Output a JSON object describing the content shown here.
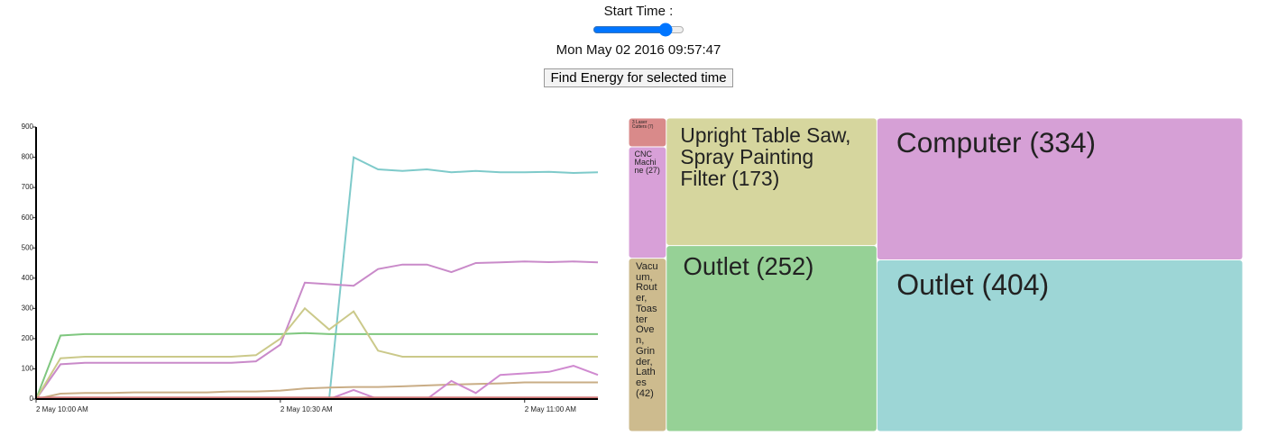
{
  "controls": {
    "label": "Start Time :",
    "date": "Mon May 02 2016 09:57:47",
    "button": "Find Energy for selected time"
  },
  "chart_data": [
    {
      "type": "line",
      "x": [
        "2 May 10:00 AM",
        "2 May 10:03 AM",
        "2 May 10:06 AM",
        "2 May 10:09 AM",
        "2 May 10:12 AM",
        "2 May 10:15 AM",
        "2 May 10:18 AM",
        "2 May 10:21 AM",
        "2 May 10:24 AM",
        "2 May 10:27 AM",
        "2 May 10:30 AM",
        "2 May 10:33 AM",
        "2 May 10:36 AM",
        "2 May 10:39 AM",
        "2 May 10:42 AM",
        "2 May 10:45 AM",
        "2 May 10:48 AM",
        "2 May 10:51 AM",
        "2 May 10:54 AM",
        "2 May 10:57 AM",
        "2 May 11:00 AM",
        "2 May 11:03 AM",
        "2 May 11:06 AM",
        "2 May 11:09 AM"
      ],
      "xlim": [
        "2 May 10:00 AM",
        "2 May 11:09 AM"
      ],
      "xticks": [
        "2 May 10:00 AM",
        "2 May 10:30 AM",
        "2 May 11:00 AM"
      ],
      "ylim": [
        0,
        900
      ],
      "yticks": [
        0,
        100,
        200,
        300,
        400,
        500,
        600,
        700,
        800,
        900
      ],
      "series": [
        {
          "color": "#7ecaca",
          "values": [
            0,
            0,
            0,
            0,
            0,
            0,
            0,
            0,
            0,
            0,
            0,
            0,
            0,
            800,
            760,
            755,
            760,
            750,
            755,
            750,
            750,
            752,
            748,
            750
          ]
        },
        {
          "color": "#c98ac9",
          "values": [
            0,
            115,
            120,
            120,
            120,
            120,
            120,
            120,
            120,
            125,
            180,
            385,
            380,
            375,
            430,
            445,
            445,
            420,
            450,
            452,
            455,
            453,
            455,
            452
          ]
        },
        {
          "color": "#7fc77f",
          "values": [
            0,
            210,
            215,
            215,
            215,
            215,
            215,
            215,
            215,
            215,
            215,
            218,
            215,
            215,
            215,
            215,
            215,
            215,
            215,
            215,
            215,
            215,
            215,
            215
          ]
        },
        {
          "color": "#cbc98a",
          "values": [
            0,
            135,
            140,
            140,
            140,
            140,
            140,
            140,
            140,
            145,
            200,
            300,
            230,
            290,
            160,
            140,
            140,
            140,
            140,
            140,
            140,
            140,
            140,
            140
          ]
        },
        {
          "color": "#c9ad86",
          "values": [
            0,
            18,
            20,
            20,
            22,
            22,
            22,
            22,
            25,
            25,
            28,
            35,
            38,
            40,
            40,
            42,
            45,
            48,
            50,
            52,
            55,
            55,
            55,
            55
          ]
        },
        {
          "color": "#d08ad0",
          "values": [
            0,
            0,
            0,
            0,
            0,
            0,
            0,
            0,
            0,
            0,
            0,
            0,
            0,
            30,
            0,
            0,
            0,
            60,
            20,
            80,
            85,
            90,
            110,
            80
          ]
        },
        {
          "color": "#d07878",
          "values": [
            5,
            5,
            5,
            5,
            5,
            5,
            5,
            5,
            5,
            5,
            5,
            5,
            5,
            5,
            5,
            5,
            5,
            5,
            5,
            5,
            5,
            5,
            5,
            5
          ]
        }
      ]
    },
    {
      "type": "treemap",
      "groups": [
        {
          "items": [
            {
              "label": "3 Laser Cutters (7)",
              "value": 7,
              "color": "#d98a8a"
            },
            {
              "label": "CNC Machine (27)",
              "value": 27,
              "color": "#d8a0d8"
            },
            {
              "label": "Vacuum, Router, Toaster Oven, Grinder, Lathes (42)",
              "value": 42,
              "color": "#cdbb8e"
            }
          ]
        },
        {
          "items": [
            {
              "label": "Upright Table Saw, Spray Painting Filter (173)",
              "value": 173,
              "color": "#d6d69e"
            },
            {
              "label": "Outlet (252)",
              "value": 252,
              "color": "#96d196"
            }
          ]
        },
        {
          "items": [
            {
              "label": "Computer (334)",
              "value": 334,
              "color": "#d6a0d6"
            },
            {
              "label": "Outlet (404)",
              "value": 404,
              "color": "#9dd6d6"
            }
          ]
        }
      ]
    }
  ]
}
